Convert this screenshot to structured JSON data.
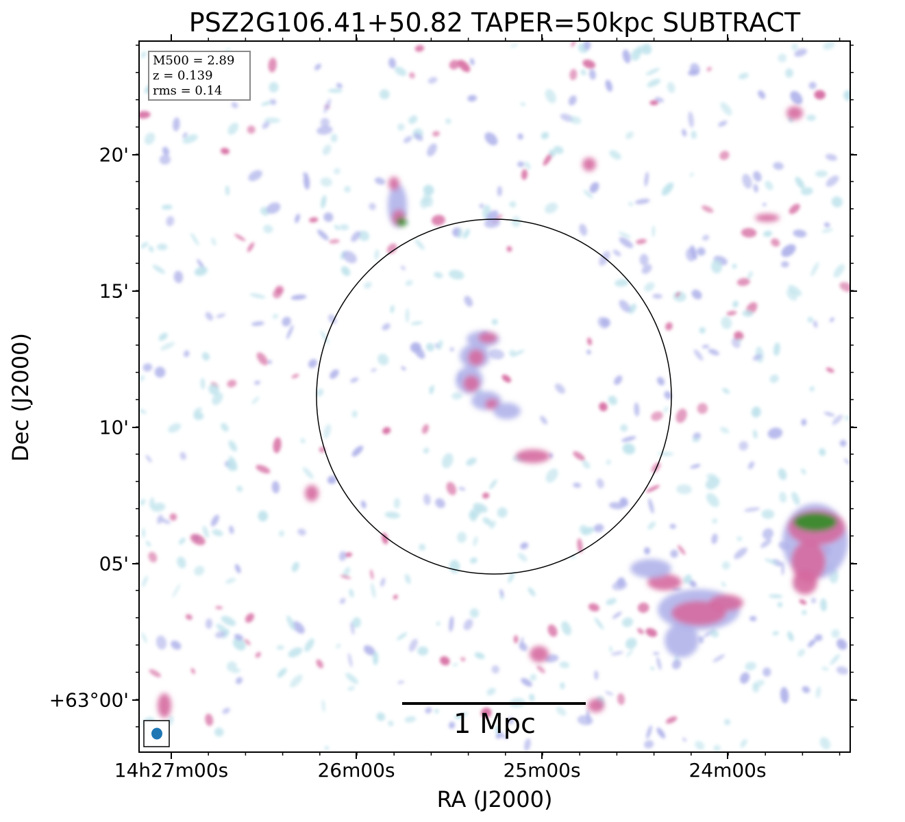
{
  "title": "PSZ2G106.41+50.82 TAPER=50kpc SUBTRACT",
  "axes": {
    "xlabel": "RA (J2000)",
    "ylabel": "Dec (J2000)",
    "x_ticks": [
      "14h27m00s",
      "26m00s",
      "25m00s",
      "24m00s"
    ],
    "y_ticks": [
      "20'",
      "15'",
      "10'",
      "05'",
      "+63°00'"
    ]
  },
  "info": {
    "m500": "M500 = 2.89",
    "z": "z = 0.139",
    "rms": "rms = 0.14"
  },
  "scale_bar": {
    "label": "1 Mpc"
  },
  "colors": {
    "low_emission": "#bfe3ec",
    "mid_emission": "#b0b3ea",
    "high_emission": "#d56aa0",
    "peak_emission": "#3f8a30",
    "beam": "#1f77b4"
  }
}
